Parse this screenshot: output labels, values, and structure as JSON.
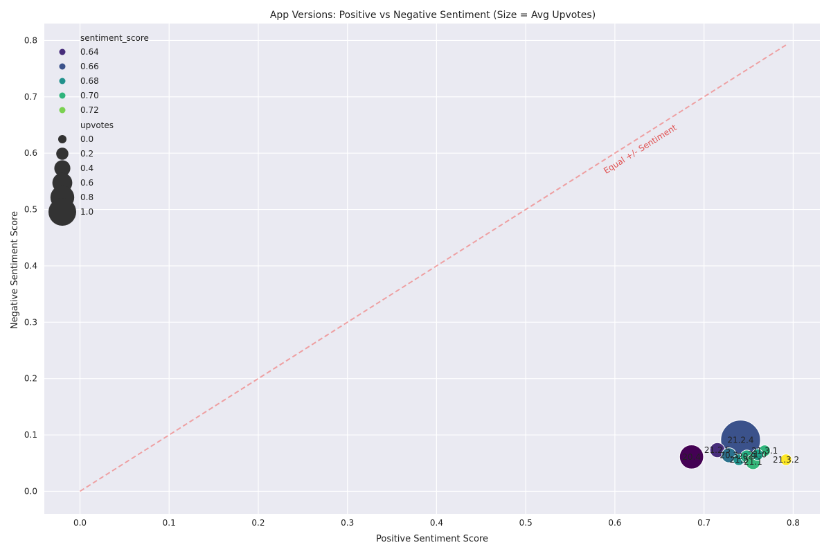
{
  "chart_data": {
    "type": "scatter",
    "title": "App Versions: Positive vs Negative Sentiment (Size = Avg Upvotes)",
    "xlabel": "Positive Sentiment Score",
    "ylabel": "Negative Sentiment Score",
    "xlim": [
      -0.04,
      0.83
    ],
    "ylim": [
      -0.04,
      0.83
    ],
    "xticks": [
      "0.0",
      "0.1",
      "0.2",
      "0.3",
      "0.4",
      "0.5",
      "0.6",
      "0.7",
      "0.8"
    ],
    "yticks": [
      "0.0",
      "0.1",
      "0.2",
      "0.3",
      "0.4",
      "0.5",
      "0.6",
      "0.7",
      "0.8"
    ],
    "grid": true,
    "background": "#eaeaf2",
    "reference_line": {
      "label": "Equal +/- Sentiment",
      "from": [
        0.0,
        0.0
      ],
      "to": [
        0.792,
        0.792
      ],
      "color": "#f08080",
      "style": "dashed"
    },
    "legend": {
      "placement": "top-left",
      "hue_title": "sentiment_score",
      "hue_entries": [
        {
          "label": "0.64",
          "color": "#472d7b"
        },
        {
          "label": "0.66",
          "color": "#3b528b"
        },
        {
          "label": "0.68",
          "color": "#21918c"
        },
        {
          "label": "0.70",
          "color": "#2fb47c"
        },
        {
          "label": "0.72",
          "color": "#7ad151"
        }
      ],
      "size_title": "upvotes",
      "size_entries": [
        {
          "label": "0.0",
          "size": 0.0
        },
        {
          "label": "0.2",
          "size": 0.2
        },
        {
          "label": "0.4",
          "size": 0.4
        },
        {
          "label": "0.6",
          "size": 0.6
        },
        {
          "label": "0.8",
          "size": 0.8
        },
        {
          "label": "1.0",
          "size": 1.0
        }
      ]
    },
    "points": [
      {
        "label": "21.2.4",
        "x": 0.741,
        "y": 0.091,
        "size": 1.0,
        "color": "#3b528b"
      },
      {
        "label": "20.4",
        "x": 0.686,
        "y": 0.061,
        "size": 0.35,
        "color": "#440154"
      },
      {
        "label": "21.2.5",
        "x": 0.715,
        "y": 0.073,
        "size": 0.12,
        "color": "#472d7b"
      },
      {
        "label": "21.3.1",
        "x": 0.768,
        "y": 0.072,
        "size": 0.06,
        "color": "#2fb47c"
      },
      {
        "label": "21.3.2",
        "x": 0.792,
        "y": 0.056,
        "size": 0.06,
        "color": "#fde725"
      },
      {
        "label": "20.3",
        "x": 0.728,
        "y": 0.064,
        "size": 0.12,
        "color": "#2c728e"
      },
      {
        "label": "21.2",
        "x": 0.739,
        "y": 0.056,
        "size": 0.06,
        "color": "#21918c"
      },
      {
        "label": "20.9",
        "x": 0.748,
        "y": 0.062,
        "size": 0.08,
        "color": "#27ad81"
      },
      {
        "label": "21.1",
        "x": 0.755,
        "y": 0.052,
        "size": 0.12,
        "color": "#35b779"
      },
      {
        "label": "21.0",
        "x": 0.76,
        "y": 0.065,
        "size": 0.06,
        "color": "#1fa187"
      }
    ]
  }
}
